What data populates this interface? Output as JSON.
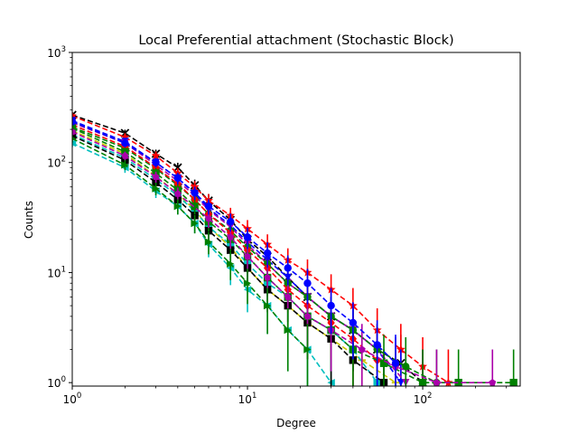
{
  "chart_data": {
    "type": "line",
    "title": "Local Preferential attachment (Stochastic Block)",
    "xlabel": "Degree",
    "ylabel": "Counts",
    "xscale": "log",
    "yscale": "log",
    "xlim": [
      1,
      360
    ],
    "ylim": [
      0.93,
      1000
    ],
    "xticks": [
      {
        "value": 1,
        "base": "10",
        "exp": "0"
      },
      {
        "value": 10,
        "base": "10",
        "exp": "1"
      },
      {
        "value": 100,
        "base": "10",
        "exp": "2"
      }
    ],
    "yticks": [
      {
        "value": 1,
        "base": "10",
        "exp": "0"
      },
      {
        "value": 10,
        "base": "10",
        "exp": "1"
      },
      {
        "value": 100,
        "base": "10",
        "exp": "2"
      },
      {
        "value": 1000,
        "base": "10",
        "exp": "3"
      }
    ],
    "grid": false,
    "legend": "none",
    "line_style": "dashed",
    "error_bars": true,
    "series": [
      {
        "color": "#000000",
        "marker": "x",
        "x": [
          1,
          2,
          3,
          4,
          5,
          6,
          8,
          10,
          13,
          17,
          22,
          30,
          40,
          55,
          75,
          100
        ],
        "y": [
          270,
          185,
          120,
          90,
          62,
          45,
          30,
          20,
          14,
          9,
          6,
          4,
          3,
          2,
          1.5,
          1
        ]
      },
      {
        "color": "#ff0000",
        "marker": "star",
        "x": [
          1,
          2,
          3,
          4,
          5,
          6,
          8,
          10,
          13,
          17,
          22,
          30,
          40,
          55,
          75,
          100,
          140
        ],
        "y": [
          265,
          170,
          115,
          80,
          60,
          45,
          33,
          25,
          18,
          13,
          10,
          7,
          5,
          3,
          2,
          1.4,
          1
        ]
      },
      {
        "color": "#0000ff",
        "marker": "v",
        "x": [
          1,
          2,
          3,
          4,
          5,
          6,
          8,
          10,
          13,
          17,
          22,
          30,
          40,
          55,
          75
        ],
        "y": [
          240,
          155,
          100,
          72,
          52,
          38,
          27,
          19,
          13,
          9,
          6,
          4,
          3,
          2,
          1
        ]
      },
      {
        "color": "#aa00aa",
        "marker": "v",
        "x": [
          1,
          2,
          3,
          4,
          5,
          6,
          8,
          10,
          13,
          17,
          22,
          30,
          40,
          55,
          80
        ],
        "y": [
          230,
          150,
          95,
          68,
          50,
          37,
          26,
          18,
          12,
          8,
          6,
          4,
          3,
          2,
          1
        ]
      },
      {
        "color": "#008000",
        "marker": "o",
        "x": [
          1,
          2,
          3,
          4,
          5,
          6,
          8,
          10,
          13,
          17,
          22,
          30,
          40,
          55,
          80,
          120
        ],
        "y": [
          210,
          135,
          88,
          62,
          46,
          34,
          24,
          17,
          12,
          8,
          6,
          4,
          3,
          2,
          1.4,
          1
        ]
      },
      {
        "color": "#c8c800",
        "marker": "+",
        "x": [
          1,
          2,
          3,
          4,
          5,
          6,
          8,
          10,
          13,
          17,
          22,
          30,
          45,
          70
        ],
        "y": [
          195,
          120,
          75,
          52,
          37,
          26,
          17,
          11,
          7,
          5,
          3.5,
          2.5,
          1.6,
          1
        ]
      },
      {
        "color": "#00bfbf",
        "marker": "<",
        "x": [
          1,
          2,
          3,
          4,
          5,
          6,
          8,
          10,
          13,
          17,
          22,
          30
        ],
        "y": [
          150,
          90,
          55,
          40,
          28,
          18,
          11,
          7,
          5,
          3,
          2,
          1
        ]
      },
      {
        "color": "#00bfbf",
        "marker": "s",
        "x": [
          1,
          2,
          3,
          4,
          5,
          6,
          8,
          10,
          13,
          17,
          22,
          30,
          40,
          55
        ],
        "y": [
          180,
          110,
          70,
          50,
          36,
          26,
          18,
          12,
          8,
          6,
          4,
          3,
          2,
          1
        ]
      },
      {
        "color": "#000000",
        "marker": "s",
        "x": [
          1,
          2,
          3,
          4,
          5,
          6,
          8,
          10,
          13,
          17,
          22,
          30,
          40,
          60
        ],
        "y": [
          175,
          105,
          66,
          46,
          33,
          24,
          16,
          11,
          7,
          5,
          3.5,
          2.5,
          1.6,
          1
        ]
      },
      {
        "color": "#ff0000",
        "marker": "D",
        "x": [
          1,
          2,
          3,
          4,
          5,
          6,
          8,
          10,
          13,
          17,
          22,
          30,
          40,
          55
        ],
        "y": [
          220,
          140,
          90,
          64,
          46,
          34,
          23,
          16,
          11,
          7,
          5,
          3.5,
          2.5,
          1.6
        ]
      },
      {
        "color": "#008000",
        "marker": "s",
        "x": [
          1,
          2,
          3,
          4,
          5,
          6,
          8,
          10,
          13,
          17,
          22,
          30,
          40,
          60,
          100,
          160,
          330
        ],
        "y": [
          205,
          125,
          80,
          56,
          40,
          29,
          20,
          14,
          9,
          6,
          4,
          3,
          2,
          1.5,
          1,
          1,
          1
        ]
      },
      {
        "color": "#aa00aa",
        "marker": "p",
        "x": [
          1,
          2,
          3,
          4,
          6,
          8,
          10,
          13,
          17,
          22,
          30,
          45,
          70,
          120,
          250
        ],
        "y": [
          190,
          115,
          74,
          52,
          31,
          21,
          14,
          9,
          6,
          4,
          3,
          2,
          1.4,
          1,
          1
        ]
      },
      {
        "color": "#0000ff",
        "marker": "o",
        "x": [
          1,
          2,
          3,
          4,
          5,
          6,
          8,
          10,
          13,
          17,
          22,
          30,
          40,
          55,
          70
        ],
        "y": [
          235,
          150,
          100,
          72,
          53,
          40,
          29,
          21,
          15,
          11,
          8,
          5,
          3.5,
          2.2,
          1.5
        ]
      },
      {
        "color": "#008000",
        "marker": ">",
        "x": [
          1,
          2,
          3,
          4,
          5,
          6,
          8,
          10,
          13,
          17,
          22
        ],
        "y": [
          165,
          95,
          58,
          40,
          28,
          19,
          12,
          8,
          5,
          3,
          2
        ]
      }
    ]
  }
}
